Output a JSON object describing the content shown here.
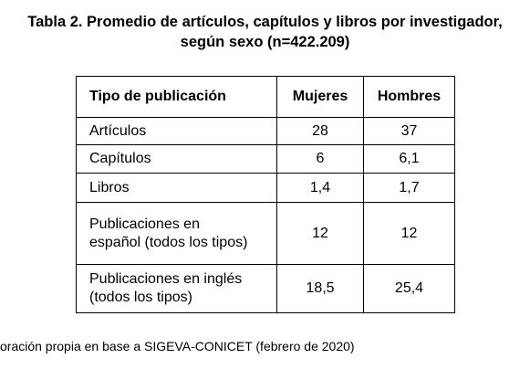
{
  "title": {
    "line1": "Tabla 2. Promedio de artículos, capítulos y libros por investigador,",
    "line2": "según sexo (n=422.209)"
  },
  "table": {
    "header": [
      "Tipo de publicación",
      "Mujeres",
      "Hombres"
    ],
    "rows": [
      [
        "Artículos",
        "28",
        "37"
      ],
      [
        "Capítulos",
        "6",
        "6,1"
      ],
      [
        "Libros",
        "1,4",
        "1,7"
      ],
      [
        "Publicaciones en español (todos los tipos)",
        "12",
        "12"
      ],
      [
        "Publicaciones en inglés (todos los tipos)",
        "18,5",
        "25,4"
      ]
    ]
  },
  "footer": {
    "source": "oración propia en base a SIGEVA-CONICET (febrero de 2020)"
  }
}
